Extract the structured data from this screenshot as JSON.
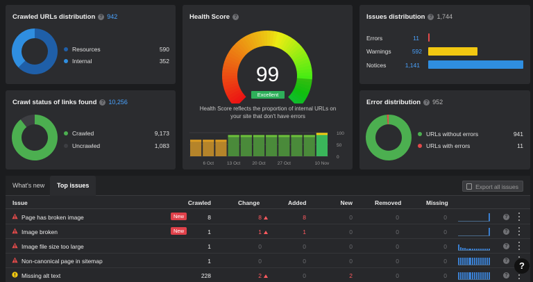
{
  "crawled": {
    "title": "Crawled URLs distribution",
    "count": "942",
    "legend": [
      {
        "label": "Resources",
        "value": "590",
        "color": "#1f5fa8"
      },
      {
        "label": "Internal",
        "value": "352",
        "color": "#2f8ee0"
      }
    ],
    "chart_data": {
      "type": "pie",
      "categories": [
        "Resources",
        "Internal"
      ],
      "values": [
        590,
        352
      ]
    }
  },
  "crawl_status": {
    "title": "Crawl status of links found",
    "count": "10,256",
    "legend": [
      {
        "label": "Crawled",
        "value": "9,173",
        "color": "#4caf50"
      },
      {
        "label": "Uncrawled",
        "value": "1,083",
        "color": "#3d3e42"
      }
    ],
    "chart_data": {
      "type": "pie",
      "categories": [
        "Crawled",
        "Uncrawled"
      ],
      "values": [
        9173,
        1083
      ]
    }
  },
  "health": {
    "title": "Health Score",
    "score": "99",
    "badge": "Excellent",
    "description": "Health Score reflects the proportion of internal URLs on your site that don't have errors",
    "chart_data": {
      "type": "bar",
      "values": [
        70,
        70,
        70,
        90,
        90,
        90,
        90,
        90,
        90,
        90,
        99
      ],
      "x_ticks": [
        "6 Oct",
        "13 Oct",
        "20 Oct",
        "27 Oct",
        "10 Nov"
      ],
      "y_ticks": [
        "100",
        "50",
        "0"
      ],
      "ylim": [
        0,
        100
      ]
    }
  },
  "issues": {
    "title": "Issues distribution",
    "count": "1,744",
    "rows": [
      {
        "label": "Errors",
        "value": "11",
        "num": 11,
        "color": "#e24a4a"
      },
      {
        "label": "Warnings",
        "value": "592",
        "num": 592,
        "color": "#f2c811"
      },
      {
        "label": "Notices",
        "value": "1,141",
        "num": 1141,
        "color": "#2f8ee0"
      }
    ],
    "chart_data": {
      "type": "bar",
      "categories": [
        "Errors",
        "Warnings",
        "Notices"
      ],
      "values": [
        11,
        592,
        1141
      ]
    }
  },
  "error_dist": {
    "title": "Error distribution",
    "count": "952",
    "legend": [
      {
        "label": "URLs without errors",
        "value": "941",
        "color": "#4caf50"
      },
      {
        "label": "URLs with errors",
        "value": "11",
        "color": "#e24a4a"
      }
    ],
    "chart_data": {
      "type": "pie",
      "categories": [
        "URLs without errors",
        "URLs with errors"
      ],
      "values": [
        941,
        11
      ]
    }
  },
  "tabs": {
    "whats_new": "What's new",
    "top_issues": "Top issues",
    "export": "Export all issues"
  },
  "table": {
    "headers": {
      "issue": "Issue",
      "crawled": "Crawled",
      "change": "Change",
      "added": "Added",
      "new": "New",
      "removed": "Removed",
      "missing": "Missing"
    },
    "new_label": "New",
    "help": "?",
    "rows": [
      {
        "issue": "Page has broken image",
        "type": "error",
        "is_new": true,
        "crawled": "8",
        "change": "8",
        "change_up": true,
        "added": "8",
        "new": "0",
        "removed": "0",
        "missing": "0"
      },
      {
        "issue": "Image broken",
        "type": "error",
        "is_new": true,
        "crawled": "1",
        "change": "1",
        "change_up": true,
        "added": "1",
        "new": "0",
        "removed": "0",
        "missing": "0"
      },
      {
        "issue": "Image file size too large",
        "type": "error",
        "is_new": false,
        "crawled": "1",
        "change": "0",
        "change_up": false,
        "added": "0",
        "new": "0",
        "removed": "0",
        "missing": "0"
      },
      {
        "issue": "Non-canonical page in sitemap",
        "type": "error",
        "is_new": false,
        "crawled": "1",
        "change": "0",
        "change_up": false,
        "added": "0",
        "new": "0",
        "removed": "0",
        "missing": "0"
      },
      {
        "issue": "Missing alt text",
        "type": "warning",
        "is_new": false,
        "crawled": "228",
        "change": "2",
        "change_up": true,
        "added": "0",
        "new": "2",
        "removed": "0",
        "missing": "0"
      }
    ]
  },
  "help_fab": "?"
}
